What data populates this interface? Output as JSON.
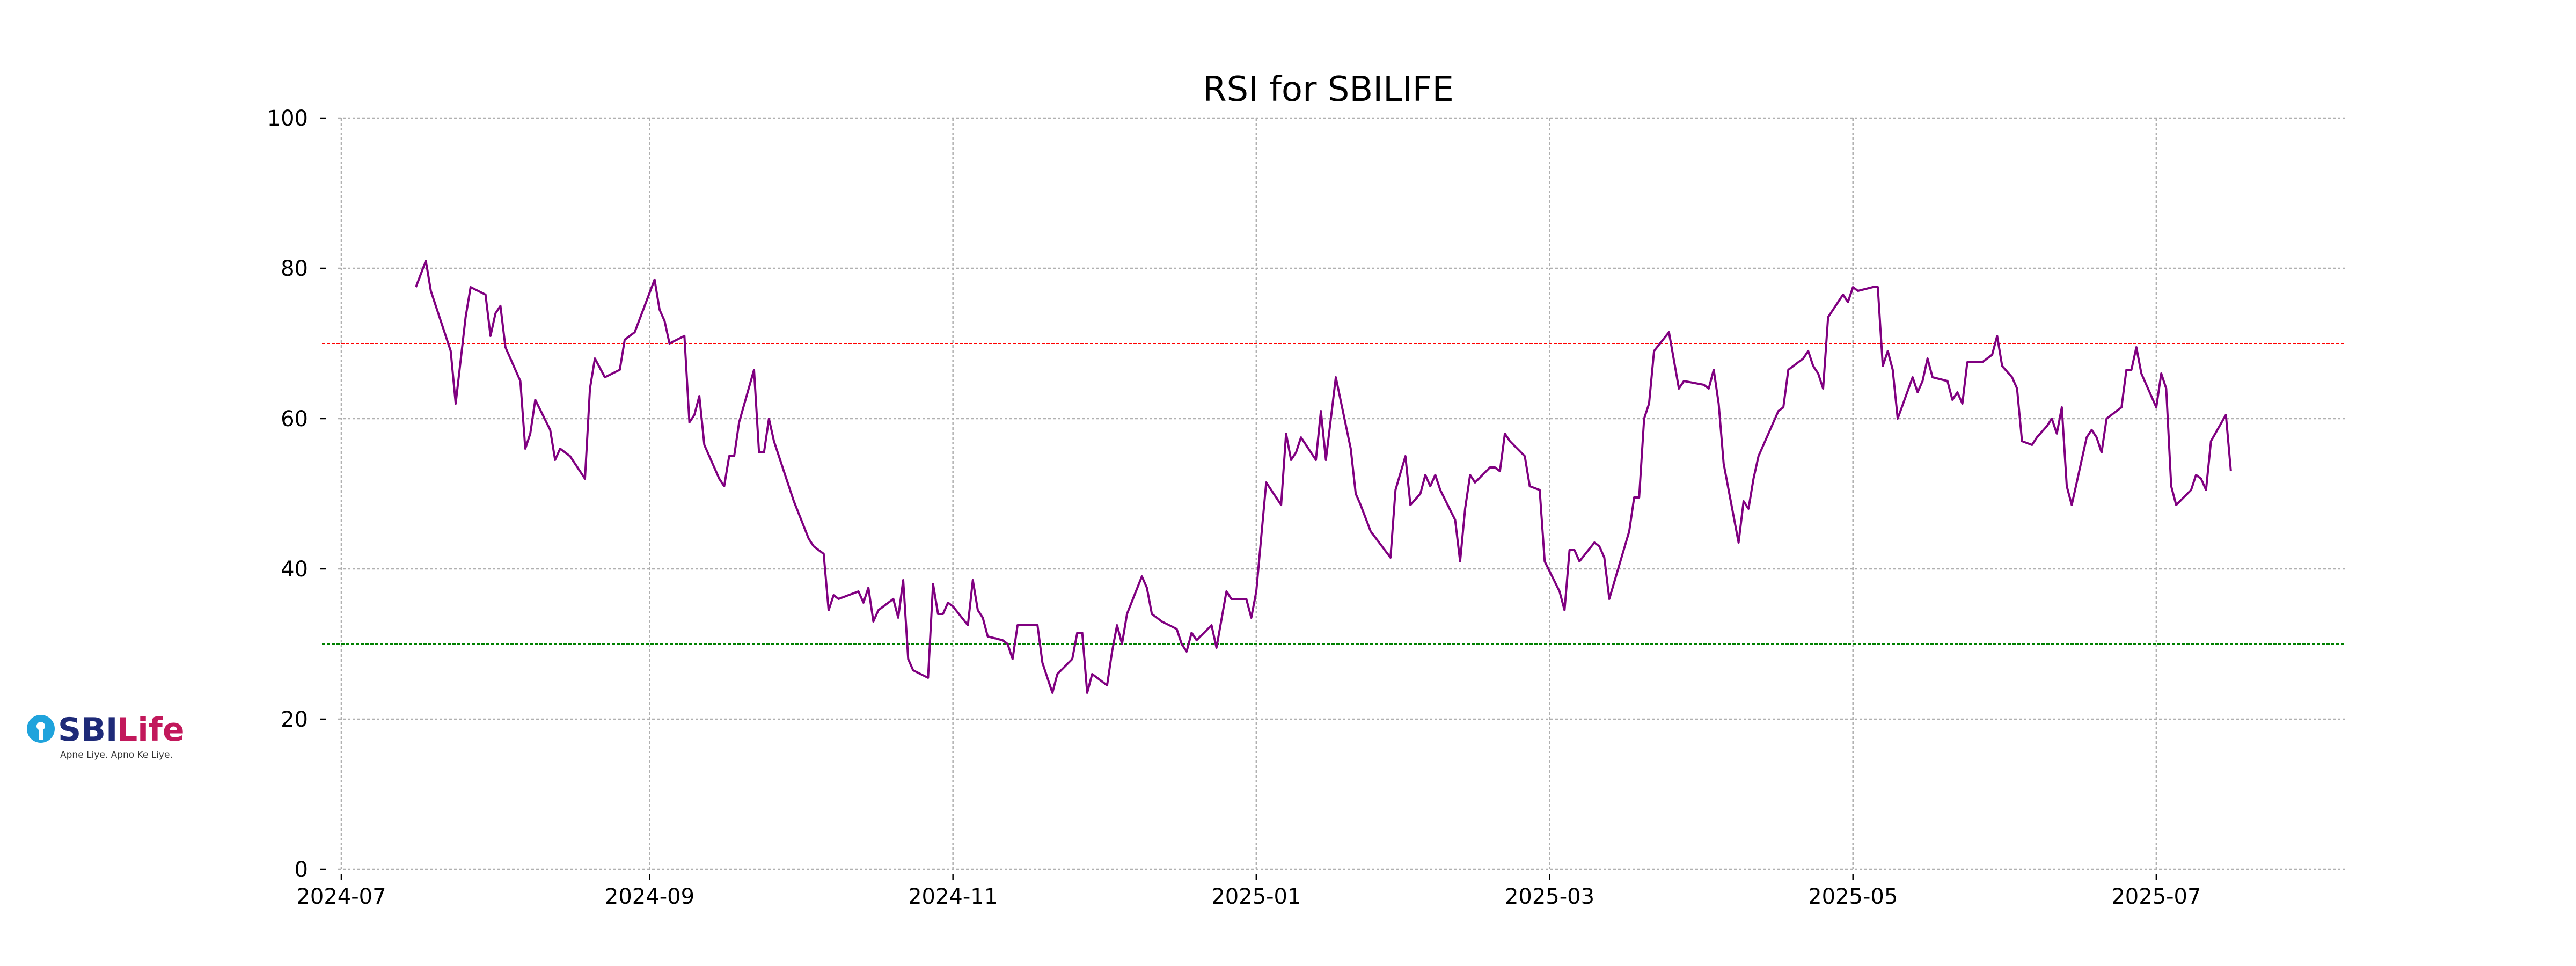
{
  "chart_data": {
    "type": "line",
    "title": "RSI for SBILIFE",
    "xlabel": "",
    "ylabel": "",
    "ylim": [
      0,
      100
    ],
    "xlim": [
      "2024-07-01",
      "2025-08-08"
    ],
    "grid": true,
    "legend": "none",
    "y_ticks": [
      0,
      20,
      40,
      60,
      80,
      100
    ],
    "x_ticks": [
      "2024-07",
      "2024-09",
      "2024-11",
      "2025-01",
      "2025-03",
      "2025-05",
      "2025-07"
    ],
    "x_tick_dates": [
      "2024-07-01",
      "2024-09-01",
      "2024-11-01",
      "2025-01-01",
      "2025-03-01",
      "2025-05-01",
      "2025-07-01"
    ],
    "reference_lines": [
      {
        "y": 70,
        "color": "#ff0000",
        "style": "dashed"
      },
      {
        "y": 30,
        "color": "#008000",
        "style": "dashed"
      }
    ],
    "series": [
      {
        "color": "#800080",
        "points": [
          [
            "2024-07-16",
            77.5
          ],
          [
            "2024-07-18",
            81
          ],
          [
            "2024-07-19",
            77
          ],
          [
            "2024-07-23",
            69
          ],
          [
            "2024-07-24",
            62
          ],
          [
            "2024-07-26",
            73.5
          ],
          [
            "2024-07-27",
            77.5
          ],
          [
            "2024-07-30",
            76.5
          ],
          [
            "2024-07-31",
            71
          ],
          [
            "2024-08-01",
            74
          ],
          [
            "2024-08-02",
            75
          ],
          [
            "2024-08-03",
            69.5
          ],
          [
            "2024-08-06",
            65
          ],
          [
            "2024-08-07",
            56
          ],
          [
            "2024-08-08",
            58
          ],
          [
            "2024-08-09",
            62.5
          ],
          [
            "2024-08-12",
            58.5
          ],
          [
            "2024-08-13",
            54.5
          ],
          [
            "2024-08-14",
            56
          ],
          [
            "2024-08-16",
            55
          ],
          [
            "2024-08-19",
            52
          ],
          [
            "2024-08-20",
            64
          ],
          [
            "2024-08-21",
            68
          ],
          [
            "2024-08-23",
            65.5
          ],
          [
            "2024-08-26",
            66.5
          ],
          [
            "2024-08-27",
            70.5
          ],
          [
            "2024-08-28",
            71
          ],
          [
            "2024-08-29",
            71.5
          ],
          [
            "2024-08-31",
            75
          ],
          [
            "2024-09-02",
            78.5
          ],
          [
            "2024-09-03",
            74.5
          ],
          [
            "2024-09-04",
            73
          ],
          [
            "2024-09-05",
            70
          ],
          [
            "2024-09-08",
            71
          ],
          [
            "2024-09-09",
            59.5
          ],
          [
            "2024-09-10",
            60.5
          ],
          [
            "2024-09-11",
            63
          ],
          [
            "2024-09-12",
            56.5
          ],
          [
            "2024-09-15",
            52
          ],
          [
            "2024-09-16",
            51
          ],
          [
            "2024-09-17",
            55
          ],
          [
            "2024-09-18",
            55
          ],
          [
            "2024-09-19",
            59.5
          ],
          [
            "2024-09-22",
            66.5
          ],
          [
            "2024-09-23",
            55.5
          ],
          [
            "2024-09-24",
            55.5
          ],
          [
            "2024-09-25",
            60
          ],
          [
            "2024-09-26",
            57
          ],
          [
            "2024-09-28",
            53
          ],
          [
            "2024-09-30",
            49
          ],
          [
            "2024-10-03",
            44
          ],
          [
            "2024-10-04",
            43
          ],
          [
            "2024-10-06",
            42
          ],
          [
            "2024-10-07",
            34.5
          ],
          [
            "2024-10-08",
            36.5
          ],
          [
            "2024-10-09",
            36
          ],
          [
            "2024-10-13",
            37
          ],
          [
            "2024-10-14",
            35.5
          ],
          [
            "2024-10-15",
            37.5
          ],
          [
            "2024-10-16",
            33
          ],
          [
            "2024-10-17",
            34.5
          ],
          [
            "2024-10-20",
            36
          ],
          [
            "2024-10-21",
            33.5
          ],
          [
            "2024-10-22",
            38.5
          ],
          [
            "2024-10-23",
            28
          ],
          [
            "2024-10-24",
            26.5
          ],
          [
            "2024-10-27",
            25.5
          ],
          [
            "2024-10-28",
            38
          ],
          [
            "2024-10-29",
            34
          ],
          [
            "2024-10-30",
            34
          ],
          [
            "2024-10-31",
            35.5
          ],
          [
            "2024-11-01",
            35
          ],
          [
            "2024-11-04",
            32.5
          ],
          [
            "2024-11-05",
            38.5
          ],
          [
            "2024-11-06",
            34.5
          ],
          [
            "2024-11-07",
            33.5
          ],
          [
            "2024-11-08",
            31
          ],
          [
            "2024-11-11",
            30.5
          ],
          [
            "2024-11-12",
            30
          ],
          [
            "2024-11-13",
            28
          ],
          [
            "2024-11-14",
            32.5
          ],
          [
            "2024-11-18",
            32.5
          ],
          [
            "2024-11-19",
            27.5
          ],
          [
            "2024-11-21",
            23.5
          ],
          [
            "2024-11-22",
            26
          ],
          [
            "2024-11-25",
            28
          ],
          [
            "2024-11-26",
            31.5
          ],
          [
            "2024-11-27",
            31.5
          ],
          [
            "2024-11-28",
            23.5
          ],
          [
            "2024-11-29",
            26
          ],
          [
            "2024-12-02",
            24.5
          ],
          [
            "2024-12-03",
            29
          ],
          [
            "2024-12-04",
            32.5
          ],
          [
            "2024-12-05",
            30
          ],
          [
            "2024-12-06",
            34
          ],
          [
            "2024-12-09",
            39
          ],
          [
            "2024-12-10",
            37.5
          ],
          [
            "2024-12-11",
            34
          ],
          [
            "2024-12-13",
            33
          ],
          [
            "2024-12-16",
            32
          ],
          [
            "2024-12-17",
            30
          ],
          [
            "2024-12-18",
            29
          ],
          [
            "2024-12-19",
            31.5
          ],
          [
            "2024-12-20",
            30.5
          ],
          [
            "2024-12-23",
            32.5
          ],
          [
            "2024-12-24",
            29.5
          ],
          [
            "2024-12-26",
            37
          ],
          [
            "2024-12-27",
            36
          ],
          [
            "2024-12-30",
            36
          ],
          [
            "2024-12-31",
            33.5
          ],
          [
            "2025-01-01",
            37
          ],
          [
            "2025-01-03",
            51.5
          ],
          [
            "2025-01-06",
            48.5
          ],
          [
            "2025-01-07",
            58
          ],
          [
            "2025-01-08",
            54.5
          ],
          [
            "2025-01-09",
            55.5
          ],
          [
            "2025-01-10",
            57.5
          ],
          [
            "2025-01-13",
            54.5
          ],
          [
            "2025-01-14",
            61
          ],
          [
            "2025-01-15",
            54.5
          ],
          [
            "2025-01-17",
            65.5
          ],
          [
            "2025-01-20",
            56
          ],
          [
            "2025-01-21",
            50
          ],
          [
            "2025-01-22",
            48.5
          ],
          [
            "2025-01-24",
            45
          ],
          [
            "2025-01-28",
            41.5
          ],
          [
            "2025-01-29",
            50.5
          ],
          [
            "2025-01-31",
            55
          ],
          [
            "2025-02-01",
            48.5
          ],
          [
            "2025-02-03",
            50
          ],
          [
            "2025-02-04",
            52.5
          ],
          [
            "2025-02-05",
            51
          ],
          [
            "2025-02-06",
            52.5
          ],
          [
            "2025-02-07",
            50.5
          ],
          [
            "2025-02-10",
            46.5
          ],
          [
            "2025-02-11",
            41
          ],
          [
            "2025-02-12",
            48
          ],
          [
            "2025-02-13",
            52.5
          ],
          [
            "2025-02-14",
            51.5
          ],
          [
            "2025-02-17",
            53.5
          ],
          [
            "2025-02-18",
            53.5
          ],
          [
            "2025-02-19",
            53
          ],
          [
            "2025-02-20",
            58
          ],
          [
            "2025-02-21",
            57
          ],
          [
            "2025-02-24",
            55
          ],
          [
            "2025-02-25",
            51
          ],
          [
            "2025-02-27",
            50.5
          ],
          [
            "2025-02-28",
            41
          ],
          [
            "2025-03-03",
            37
          ],
          [
            "2025-03-04",
            34.5
          ],
          [
            "2025-03-05",
            42.5
          ],
          [
            "2025-03-06",
            42.5
          ],
          [
            "2025-03-07",
            41
          ],
          [
            "2025-03-10",
            43.5
          ],
          [
            "2025-03-11",
            43
          ],
          [
            "2025-03-12",
            41.5
          ],
          [
            "2025-03-13",
            36
          ],
          [
            "2025-03-17",
            45
          ],
          [
            "2025-03-18",
            49.5
          ],
          [
            "2025-03-19",
            49.5
          ],
          [
            "2025-03-20",
            60
          ],
          [
            "2025-03-21",
            62
          ],
          [
            "2025-03-22",
            69
          ],
          [
            "2025-03-25",
            71.5
          ],
          [
            "2025-03-27",
            64
          ],
          [
            "2025-03-28",
            65
          ],
          [
            "2025-04-01",
            64.5
          ],
          [
            "2025-04-02",
            64
          ],
          [
            "2025-04-03",
            66.5
          ],
          [
            "2025-04-04",
            62
          ],
          [
            "2025-04-05",
            54
          ],
          [
            "2025-04-08",
            43.5
          ],
          [
            "2025-04-09",
            49
          ],
          [
            "2025-04-10",
            48
          ],
          [
            "2025-04-11",
            52
          ],
          [
            "2025-04-12",
            55
          ],
          [
            "2025-04-16",
            61
          ],
          [
            "2025-04-17",
            61.5
          ],
          [
            "2025-04-18",
            66.5
          ],
          [
            "2025-04-21",
            68
          ],
          [
            "2025-04-22",
            69
          ],
          [
            "2025-04-23",
            67
          ],
          [
            "2025-04-24",
            66
          ],
          [
            "2025-04-25",
            64
          ],
          [
            "2025-04-26",
            73.5
          ],
          [
            "2025-04-29",
            76.5
          ],
          [
            "2025-04-30",
            75.5
          ],
          [
            "2025-05-01",
            77.5
          ],
          [
            "2025-05-02",
            77
          ],
          [
            "2025-05-05",
            77.5
          ],
          [
            "2025-05-06",
            77.5
          ],
          [
            "2025-05-07",
            67
          ],
          [
            "2025-05-08",
            69
          ],
          [
            "2025-05-09",
            66.5
          ],
          [
            "2025-05-10",
            60
          ],
          [
            "2025-05-13",
            65.5
          ],
          [
            "2025-05-14",
            63.5
          ],
          [
            "2025-05-15",
            65
          ],
          [
            "2025-05-16",
            68
          ],
          [
            "2025-05-17",
            65.5
          ],
          [
            "2025-05-20",
            65
          ],
          [
            "2025-05-21",
            62.5
          ],
          [
            "2025-05-22",
            63.5
          ],
          [
            "2025-05-23",
            62
          ],
          [
            "2025-05-24",
            67.5
          ],
          [
            "2025-05-27",
            67.5
          ],
          [
            "2025-05-28",
            68
          ],
          [
            "2025-05-29",
            68.5
          ],
          [
            "2025-05-30",
            71
          ],
          [
            "2025-05-31",
            67
          ],
          [
            "2025-06-02",
            65.5
          ],
          [
            "2025-06-03",
            64
          ],
          [
            "2025-06-04",
            57
          ],
          [
            "2025-06-06",
            56.5
          ],
          [
            "2025-06-07",
            57.5
          ],
          [
            "2025-06-09",
            59
          ],
          [
            "2025-06-10",
            60
          ],
          [
            "2025-06-11",
            58
          ],
          [
            "2025-06-12",
            61.5
          ],
          [
            "2025-06-13",
            51
          ],
          [
            "2025-06-14",
            48.5
          ],
          [
            "2025-06-17",
            57.5
          ],
          [
            "2025-06-18",
            58.5
          ],
          [
            "2025-06-19",
            57.5
          ],
          [
            "2025-06-20",
            55.5
          ],
          [
            "2025-06-21",
            60
          ],
          [
            "2025-06-24",
            61.5
          ],
          [
            "2025-06-25",
            66.5
          ],
          [
            "2025-06-26",
            66.5
          ],
          [
            "2025-06-27",
            69.5
          ],
          [
            "2025-06-28",
            66
          ],
          [
            "2025-07-01",
            61.5
          ],
          [
            "2025-07-02",
            66
          ],
          [
            "2025-07-03",
            64
          ],
          [
            "2025-07-04",
            51
          ],
          [
            "2025-07-05",
            48.5
          ],
          [
            "2025-07-08",
            50.5
          ],
          [
            "2025-07-09",
            52.5
          ],
          [
            "2025-07-10",
            52
          ],
          [
            "2025-07-11",
            50.5
          ],
          [
            "2025-07-12",
            57
          ],
          [
            "2025-07-15",
            60.5
          ],
          [
            "2025-07-16",
            53
          ]
        ]
      }
    ]
  },
  "logo": {
    "brand_sbi": "SBI",
    "brand_life": "Life",
    "tagline": "Apne Liye. Apno Ke Liye.",
    "colors": {
      "sbi": "#1e2a78",
      "life": "#c2185b",
      "emblem": "#1fa3dc"
    }
  }
}
